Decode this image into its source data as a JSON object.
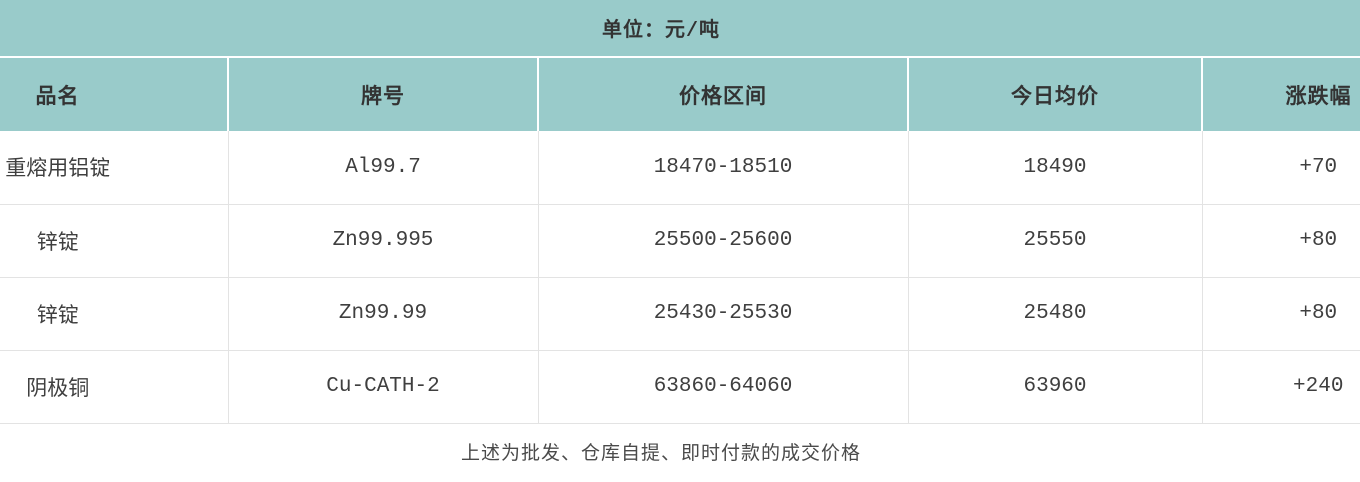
{
  "unit_label": "单位：元/吨",
  "footer_note": "上述为批发、仓库自提、即时付款的成交价格",
  "colors": {
    "banner_bg": "#99cbca",
    "header_bg": "#99cbca",
    "grid_line": "#e3e3e3",
    "header_text": "#333333",
    "body_text": "#3f3f3f"
  },
  "chart_data": {
    "type": "table",
    "title": "单位：元/吨",
    "note": "上述为批发、仓库自提、即时付款的成交价格",
    "columns": [
      "品名",
      "牌号",
      "价格区间",
      "今日均价",
      "涨跌幅"
    ],
    "rows": [
      {
        "product": "重熔用铝锭",
        "grade": "Al99.7",
        "price_range": "18470-18510",
        "price_min": 18470,
        "price_max": 18510,
        "avg_price": "18490",
        "avg_value": 18490,
        "change": "+70",
        "change_value": 70
      },
      {
        "product": "锌锭",
        "grade": "Zn99.995",
        "price_range": "25500-25600",
        "price_min": 25500,
        "price_max": 25600,
        "avg_price": "25550",
        "avg_value": 25550,
        "change": "+80",
        "change_value": 80
      },
      {
        "product": "锌锭",
        "grade": "Zn99.99",
        "price_range": "25430-25530",
        "price_min": 25430,
        "price_max": 25530,
        "avg_price": "25480",
        "avg_value": 25480,
        "change": "+80",
        "change_value": 80
      },
      {
        "product": "阴极铜",
        "grade": "Cu-CATH-2",
        "price_range": "63860-64060",
        "price_min": 63860,
        "price_max": 64060,
        "avg_price": "63960",
        "avg_value": 63960,
        "change": "+240",
        "change_value": 240
      }
    ]
  }
}
